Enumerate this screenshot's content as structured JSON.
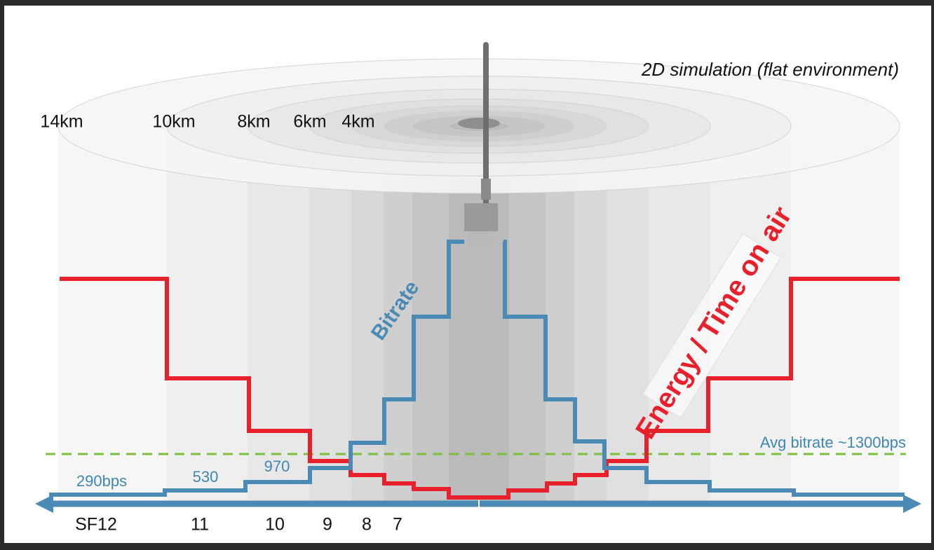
{
  "title": "2D simulation (flat environment)",
  "distances": [
    "14km",
    "10km",
    "8km",
    "6km",
    "4km"
  ],
  "curves": {
    "bitrate": "Bitrate",
    "energy": "Energy / Time on air"
  },
  "average": "Avg bitrate ~1300bps",
  "bitrate_labels": [
    "290bps",
    "530",
    "970"
  ],
  "spreading_factors": [
    "SF12",
    "11",
    "10",
    "9",
    "8",
    "7"
  ]
}
